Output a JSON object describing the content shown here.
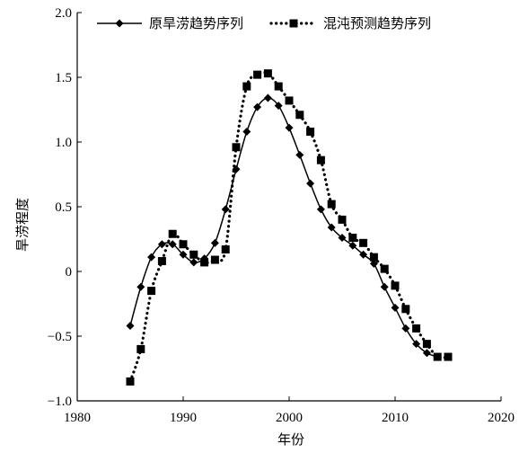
{
  "chart_data": {
    "type": "line",
    "xlabel": "年份",
    "ylabel": "旱涝程度",
    "xlim": [
      1980,
      2020
    ],
    "ylim": [
      -1.0,
      2.0
    ],
    "xticks": [
      1980,
      1990,
      2000,
      2010,
      2020
    ],
    "yticks": [
      -1.0,
      -0.5,
      0,
      0.5,
      1.0,
      1.5,
      2.0
    ],
    "xtick_labels": [
      "1980",
      "1990",
      "2000",
      "2010",
      "2020"
    ],
    "ytick_labels": [
      "−1.0",
      "−0.5",
      "0",
      "0.5",
      "1.0",
      "1.5",
      "2.0"
    ],
    "grid": false,
    "legend_position": "top",
    "series": [
      {
        "name": "原旱涝趋势序列",
        "color": "#000000",
        "line_style": "solid",
        "marker": "diamond",
        "x": [
          1985,
          1986,
          1987,
          1988,
          1989,
          1990,
          1991,
          1992,
          1993,
          1994,
          1995,
          1996,
          1997,
          1998,
          1999,
          2000,
          2001,
          2002,
          2003,
          2004,
          2005,
          2006,
          2007,
          2008,
          2009,
          2010,
          2011,
          2012,
          2013,
          2014
        ],
        "y": [
          -0.42,
          -0.12,
          0.11,
          0.21,
          0.21,
          0.13,
          0.07,
          0.1,
          0.22,
          0.48,
          0.79,
          1.08,
          1.27,
          1.34,
          1.28,
          1.11,
          0.9,
          0.68,
          0.48,
          0.34,
          0.26,
          0.2,
          0.13,
          0.06,
          -0.12,
          -0.28,
          -0.44,
          -0.56,
          -0.63,
          -0.66
        ]
      },
      {
        "name": "混沌预测趋势序列",
        "color": "#000000",
        "line_style": "dotted",
        "marker": "square",
        "x": [
          1985,
          1986,
          1987,
          1988,
          1989,
          1990,
          1991,
          1992,
          1993,
          1994,
          1995,
          1996,
          1997,
          1998,
          1999,
          2000,
          2001,
          2002,
          2003,
          2004,
          2005,
          2006,
          2007,
          2008,
          2009,
          2010,
          2011,
          2012,
          2013,
          2014,
          2015
        ],
        "y": [
          -0.85,
          -0.6,
          -0.15,
          0.08,
          0.29,
          0.21,
          0.13,
          0.07,
          0.09,
          0.17,
          0.96,
          1.43,
          1.52,
          1.53,
          1.43,
          1.32,
          1.21,
          1.08,
          0.86,
          0.52,
          0.4,
          0.26,
          0.22,
          0.11,
          0.02,
          -0.11,
          -0.29,
          -0.44,
          -0.56,
          -0.66,
          -0.66
        ]
      }
    ]
  }
}
